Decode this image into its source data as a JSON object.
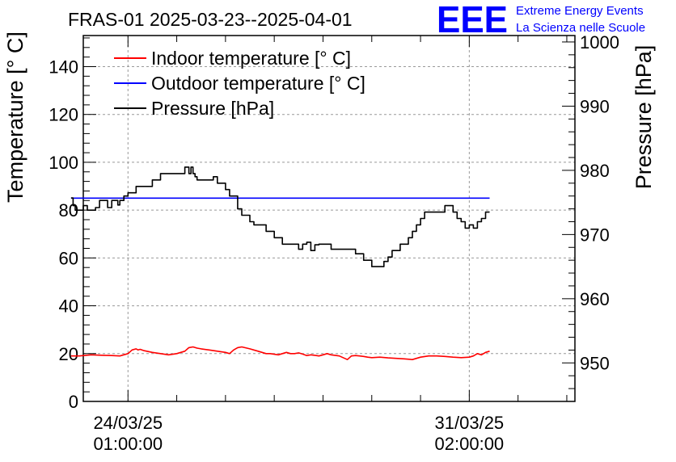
{
  "chart_data": {
    "type": "line",
    "title": "FRAS-01 2025-03-23--2025-04-01",
    "ylabel": "Temperature [° C]",
    "y2label": "Pressure [hPa]",
    "ylim": [
      0,
      153
    ],
    "y2lim": [
      944,
      1001
    ],
    "yticks": [
      0,
      20,
      40,
      60,
      80,
      100,
      120,
      140
    ],
    "y2ticks": [
      950,
      960,
      970,
      980,
      990,
      1000
    ],
    "x_range_hours": [
      -22,
      220
    ],
    "xticks": [
      {
        "hour": 0,
        "line1": "24/03/25",
        "line2": "01:00:00"
      },
      {
        "hour": 168,
        "line1": "31/03/25",
        "line2": "02:00:00"
      }
    ],
    "grid": true,
    "legend": {
      "placement": "top-left"
    },
    "colors": {
      "indoor": "#ff0000",
      "outdoor": "#0000ff",
      "pressure": "#000000"
    },
    "series": [
      {
        "name": "Indoor temperature [° C]",
        "axis": "left",
        "x": [
          -28,
          -24,
          -18,
          -12,
          -8,
          -4,
          0,
          2,
          4,
          5,
          6,
          8,
          12,
          16,
          20,
          24,
          28,
          30,
          32,
          34,
          36,
          40,
          44,
          48,
          50,
          52,
          54,
          56,
          60,
          64,
          66,
          68,
          70,
          74,
          78,
          80,
          82,
          84,
          86,
          88,
          90,
          92,
          94,
          96,
          98,
          100,
          104,
          108,
          110,
          112,
          114,
          116,
          118,
          120,
          124,
          128,
          132,
          136,
          140,
          144,
          148,
          152,
          156,
          160,
          164,
          168,
          170,
          172,
          174,
          176,
          178
        ],
        "values": [
          19,
          19,
          19.5,
          19.3,
          19.2,
          19,
          20,
          21.5,
          22,
          21.5,
          21.8,
          21.2,
          20.5,
          20,
          19.5,
          20,
          21,
          22.5,
          22.8,
          22.3,
          22,
          21.5,
          21,
          20.5,
          20,
          21.5,
          22.5,
          22.8,
          22,
          21,
          20.5,
          20,
          20,
          19.5,
          20.5,
          20,
          20,
          20.3,
          19.8,
          19.2,
          19.5,
          19.3,
          19,
          19.5,
          20,
          19.5,
          19,
          17.5,
          19,
          19.2,
          19,
          18.8,
          18.5,
          18.3,
          18.5,
          18.2,
          18,
          17.8,
          17.5,
          18.5,
          19,
          19,
          18.8,
          18.5,
          18.3,
          18.5,
          19,
          20,
          19.5,
          20.5,
          21
        ]
      },
      {
        "name": "Outdoor temperature [° C]",
        "axis": "left",
        "x": [
          -28,
          178
        ],
        "values": [
          85,
          85
        ]
      },
      {
        "name": "Pressure [hPa]",
        "axis": "right",
        "x": [
          -28,
          -27,
          -26,
          -24,
          -22,
          -20,
          -18,
          -16,
          -14,
          -12,
          -10,
          -8,
          -6,
          -5,
          -4,
          -3,
          -2,
          -1,
          0,
          1,
          2,
          4,
          8,
          12,
          16,
          18,
          20,
          24,
          28,
          30,
          31,
          32,
          33,
          34,
          36,
          40,
          42,
          44,
          48,
          50,
          52,
          54,
          56,
          60,
          62,
          64,
          68,
          72,
          76,
          80,
          84,
          86,
          88,
          90,
          92,
          94,
          96,
          98,
          100,
          101,
          102,
          104,
          106,
          108,
          112,
          116,
          120,
          124,
          126,
          128,
          130,
          134,
          138,
          140,
          142,
          144,
          146,
          148,
          150,
          152,
          154,
          156,
          160,
          162,
          164,
          166,
          168,
          170,
          172,
          174,
          176,
          178
        ],
        "values": [
          975.7,
          974.5,
          973.8,
          973.8,
          974.5,
          973.8,
          973.8,
          974.2,
          975.3,
          975.3,
          974.2,
          975.3,
          975.3,
          974.6,
          975.3,
          975.3,
          976,
          976,
          976.5,
          976.5,
          976.5,
          977.5,
          977.5,
          978.5,
          979.5,
          979.5,
          979.5,
          979.5,
          980.5,
          979.5,
          980.5,
          979.5,
          979,
          978.5,
          978.5,
          978.5,
          979,
          978,
          977,
          976,
          976,
          974,
          973,
          972,
          971.5,
          971.5,
          970.5,
          969.5,
          968.5,
          968.5,
          967.7,
          968.5,
          968.8,
          967.5,
          968.4,
          968.5,
          968.5,
          968.5,
          967.7,
          967.7,
          967.7,
          967.7,
          967.7,
          967.7,
          967,
          966,
          965,
          965,
          965.8,
          966.5,
          967.5,
          968.5,
          969.5,
          970.5,
          971.5,
          972.5,
          973.5,
          973.5,
          973.5,
          973.5,
          973.5,
          974.5,
          973.5,
          972.5,
          972,
          971,
          971.5,
          971,
          972,
          972.5,
          973.5,
          973.5
        ]
      }
    ]
  },
  "logo": {
    "letters": "EEE",
    "line1": "Extreme Energy Events",
    "line2": "La Scienza nelle Scuole",
    "color": "#0000ff"
  }
}
